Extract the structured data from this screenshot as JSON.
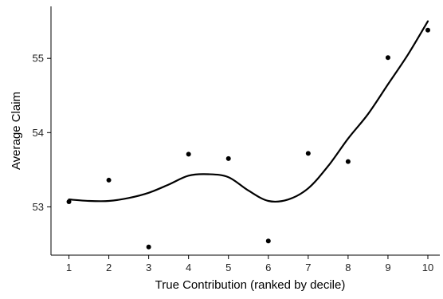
{
  "chart_data": {
    "type": "scatter",
    "xlabel": "True Contribution (ranked by decile)",
    "ylabel": "Average Claim",
    "x_ticks": [
      "1",
      "2",
      "3",
      "4",
      "5",
      "6",
      "7",
      "8",
      "9",
      "10"
    ],
    "y_ticks": [
      "53",
      "54",
      "55"
    ],
    "xlim": [
      0.55,
      10.3
    ],
    "ylim": [
      52.35,
      55.7
    ],
    "grid": false,
    "legend": "none",
    "points": {
      "x": [
        1,
        2,
        3,
        4,
        5,
        6,
        7,
        8,
        9,
        10
      ],
      "y": [
        53.07,
        53.36,
        52.46,
        53.71,
        53.65,
        52.54,
        53.72,
        53.61,
        55.01,
        55.38
      ]
    },
    "smooth_line": {
      "x": [
        1,
        1.5,
        2,
        2.5,
        3,
        3.5,
        4,
        4.5,
        5,
        5.5,
        6,
        6.5,
        7,
        7.5,
        8,
        8.5,
        9,
        9.5,
        10
      ],
      "y": [
        53.1,
        53.08,
        53.08,
        53.12,
        53.19,
        53.3,
        53.42,
        53.44,
        53.4,
        53.22,
        53.08,
        53.1,
        53.25,
        53.55,
        53.92,
        54.25,
        54.65,
        55.05,
        55.5
      ]
    },
    "colors": {
      "points": "#000000",
      "line": "#000000",
      "background": "#ffffff"
    }
  }
}
